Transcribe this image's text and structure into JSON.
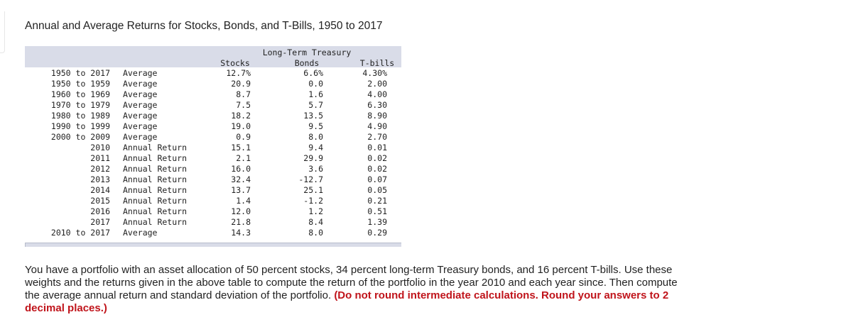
{
  "title": "Annual and Average Returns for Stocks, Bonds, and T-Bills, 1950 to 2017",
  "table": {
    "headers": {
      "stocks": "Stocks",
      "bonds_line1": "Long-Term Treasury",
      "bonds_line2": "Bonds",
      "tbills": "T-bills"
    },
    "rows": [
      {
        "period": "1950 to 2017",
        "label": "Average",
        "stocks": "12.7%",
        "bonds": "6.6%",
        "tbills": "4.30%"
      },
      {
        "period": "1950 to 1959",
        "label": "Average",
        "stocks": "20.9",
        "bonds": "0.0",
        "tbills": "2.00"
      },
      {
        "period": "1960 to 1969",
        "label": "Average",
        "stocks": "8.7",
        "bonds": "1.6",
        "tbills": "4.00"
      },
      {
        "period": "1970 to 1979",
        "label": "Average",
        "stocks": "7.5",
        "bonds": "5.7",
        "tbills": "6.30"
      },
      {
        "period": "1980 to 1989",
        "label": "Average",
        "stocks": "18.2",
        "bonds": "13.5",
        "tbills": "8.90"
      },
      {
        "period": "1990 to 1999",
        "label": "Average",
        "stocks": "19.0",
        "bonds": "9.5",
        "tbills": "4.90"
      },
      {
        "period": "2000 to 2009",
        "label": "Average",
        "stocks": "0.9",
        "bonds": "8.0",
        "tbills": "2.70"
      },
      {
        "period": "2010",
        "label": "Annual Return",
        "stocks": "15.1",
        "bonds": "9.4",
        "tbills": "0.01"
      },
      {
        "period": "2011",
        "label": "Annual Return",
        "stocks": "2.1",
        "bonds": "29.9",
        "tbills": "0.02"
      },
      {
        "period": "2012",
        "label": "Annual Return",
        "stocks": "16.0",
        "bonds": "3.6",
        "tbills": "0.02"
      },
      {
        "period": "2013",
        "label": "Annual Return",
        "stocks": "32.4",
        "bonds": "-12.7",
        "tbills": "0.07"
      },
      {
        "period": "2014",
        "label": "Annual Return",
        "stocks": "13.7",
        "bonds": "25.1",
        "tbills": "0.05"
      },
      {
        "period": "2015",
        "label": "Annual Return",
        "stocks": "1.4",
        "bonds": "-1.2",
        "tbills": "0.21"
      },
      {
        "period": "2016",
        "label": "Annual Return",
        "stocks": "12.0",
        "bonds": "1.2",
        "tbills": "0.51"
      },
      {
        "period": "2017",
        "label": "Annual Return",
        "stocks": "21.8",
        "bonds": "8.4",
        "tbills": "1.39"
      },
      {
        "period": "2010 to 2017",
        "label": "Average",
        "stocks": "14.3",
        "bonds": "8.0",
        "tbills": "0.29"
      }
    ]
  },
  "question": {
    "text": "You have a portfolio with an asset allocation of 50 percent stocks, 34 percent long-term Treasury bonds, and 16 percent T-bills. Use these weights and the returns given in the above table to compute the return of the portfolio in the year 2010 and each year since. Then compute the average annual return and standard deviation of the portfolio.",
    "emphasis": "(Do not round intermediate calculations. Round your answers to 2 decimal places.)"
  },
  "colors": {
    "table_header_bg": "#d9dce8",
    "emphasis": "#c0141b"
  }
}
